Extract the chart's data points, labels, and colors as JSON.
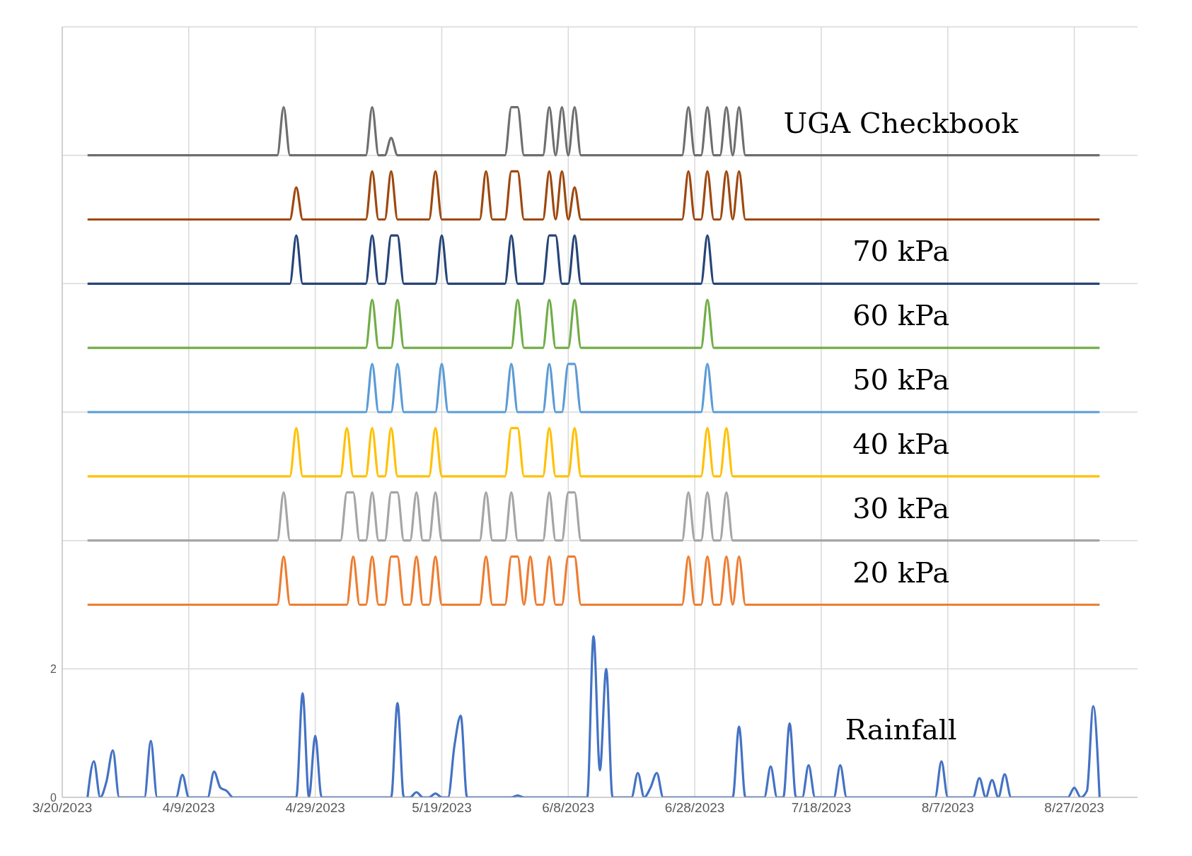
{
  "chart_data": {
    "type": "line",
    "xlim": [
      "2023-03-20",
      "2023-09-06"
    ],
    "xticks": [
      {
        "value": "2023-03-20",
        "label": "3/20/2023"
      },
      {
        "value": "2023-04-09",
        "label": "4/9/2023"
      },
      {
        "value": "2023-04-29",
        "label": "4/29/2023"
      },
      {
        "value": "2023-05-19",
        "label": "5/19/2023"
      },
      {
        "value": "2023-06-08",
        "label": "6/8/2023"
      },
      {
        "value": "2023-06-28",
        "label": "6/28/2023"
      },
      {
        "value": "2023-07-18",
        "label": "7/18/2023"
      },
      {
        "value": "2023-08-07",
        "label": "8/7/2023"
      },
      {
        "value": "2023-08-27",
        "label": "8/27/2023"
      }
    ],
    "ylim": [
      0,
      12
    ],
    "yticks": [
      0,
      2,
      {
        "value": 4,
        "label": null
      },
      {
        "value": 6,
        "label": null
      },
      {
        "value": 8,
        "label": null
      },
      {
        "value": 10,
        "label": null
      },
      {
        "value": 12,
        "label": null
      }
    ],
    "grid": true,
    "marker": "none",
    "line_style": "solid",
    "series": [
      {
        "name": "UGA Checkbook",
        "color": "#6e6e6e",
        "x": [
          "2023-03-24",
          "2023-04-23",
          "2023-04-24",
          "2023-04-25",
          "2023-05-07",
          "2023-05-08",
          "2023-05-09",
          "2023-05-10",
          "2023-05-11",
          "2023-05-12",
          "2023-05-29",
          "2023-05-30",
          "2023-05-31",
          "2023-06-01",
          "2023-06-04",
          "2023-06-05",
          "2023-06-06",
          "2023-06-07",
          "2023-06-08",
          "2023-06-09",
          "2023-06-10",
          "2023-06-26",
          "2023-06-27",
          "2023-06-28",
          "2023-06-29",
          "2023-06-30",
          "2023-07-01",
          "2023-07-02",
          "2023-07-03",
          "2023-07-04",
          "2023-07-05",
          "2023-07-06",
          "2023-08-31"
        ],
        "values": [
          10,
          10,
          10.75,
          10,
          10,
          10.75,
          10,
          10,
          10.27,
          10,
          10,
          10.75,
          10.75,
          10,
          10,
          10.75,
          10,
          10.75,
          10,
          10.75,
          10,
          10,
          10.75,
          10,
          10,
          10.75,
          10,
          10,
          10.75,
          10,
          10.75,
          10,
          10
        ]
      },
      {
        "color": "#9e480e",
        "x": [
          "2023-03-24",
          "2023-04-25",
          "2023-04-26",
          "2023-04-27",
          "2023-05-07",
          "2023-05-08",
          "2023-05-09",
          "2023-05-10",
          "2023-05-11",
          "2023-05-12",
          "2023-05-17",
          "2023-05-18",
          "2023-05-19",
          "2023-05-25",
          "2023-05-26",
          "2023-05-27",
          "2023-05-29",
          "2023-05-30",
          "2023-05-31",
          "2023-06-01",
          "2023-06-04",
          "2023-06-05",
          "2023-06-06",
          "2023-06-07",
          "2023-06-08",
          "2023-06-09",
          "2023-06-10",
          "2023-06-26",
          "2023-06-27",
          "2023-06-28",
          "2023-06-29",
          "2023-06-30",
          "2023-07-01",
          "2023-07-02",
          "2023-07-03",
          "2023-07-04",
          "2023-07-05",
          "2023-07-06",
          "2023-08-31"
        ],
        "values": [
          9,
          9,
          9.5,
          9,
          9,
          9.75,
          9,
          9,
          9.75,
          9,
          9,
          9.75,
          9,
          9,
          9.75,
          9,
          9,
          9.75,
          9.75,
          9,
          9,
          9.75,
          9,
          9.75,
          9,
          9.5,
          9,
          9,
          9.75,
          9,
          9,
          9.75,
          9,
          9,
          9.75,
          9,
          9.75,
          9,
          9
        ]
      },
      {
        "name": "70 kPa",
        "color": "#264478",
        "x": [
          "2023-03-24",
          "2023-04-25",
          "2023-04-26",
          "2023-04-27",
          "2023-05-07",
          "2023-05-08",
          "2023-05-09",
          "2023-05-10",
          "2023-05-11",
          "2023-05-12",
          "2023-05-13",
          "2023-05-18",
          "2023-05-19",
          "2023-05-20",
          "2023-05-29",
          "2023-05-30",
          "2023-05-31",
          "2023-06-04",
          "2023-06-05",
          "2023-06-06",
          "2023-06-07",
          "2023-06-08",
          "2023-06-09",
          "2023-06-10",
          "2023-06-29",
          "2023-06-30",
          "2023-07-01",
          "2023-08-31"
        ],
        "values": [
          8,
          8,
          8.75,
          8,
          8,
          8.75,
          8,
          8,
          8.75,
          8.75,
          8,
          8,
          8.75,
          8,
          8,
          8.75,
          8,
          8,
          8.75,
          8.75,
          8,
          8,
          8.75,
          8,
          8,
          8.75,
          8,
          8
        ]
      },
      {
        "name": "60 kPa",
        "color": "#70ad47",
        "x": [
          "2023-03-24",
          "2023-05-07",
          "2023-05-08",
          "2023-05-09",
          "2023-05-11",
          "2023-05-12",
          "2023-05-13",
          "2023-05-30",
          "2023-05-31",
          "2023-06-01",
          "2023-06-04",
          "2023-06-05",
          "2023-06-06",
          "2023-06-08",
          "2023-06-09",
          "2023-06-10",
          "2023-06-29",
          "2023-06-30",
          "2023-07-01",
          "2023-08-31"
        ],
        "values": [
          7,
          7,
          7.75,
          7,
          7,
          7.75,
          7,
          7,
          7.75,
          7,
          7,
          7.75,
          7,
          7,
          7.75,
          7,
          7,
          7.75,
          7,
          7
        ]
      },
      {
        "name": "50 kPa",
        "color": "#5b9bd5",
        "x": [
          "2023-03-24",
          "2023-05-07",
          "2023-05-08",
          "2023-05-09",
          "2023-05-11",
          "2023-05-12",
          "2023-05-13",
          "2023-05-18",
          "2023-05-19",
          "2023-05-20",
          "2023-05-29",
          "2023-05-30",
          "2023-05-31",
          "2023-06-04",
          "2023-06-05",
          "2023-06-06",
          "2023-06-07",
          "2023-06-08",
          "2023-06-09",
          "2023-06-10",
          "2023-06-29",
          "2023-06-30",
          "2023-07-01",
          "2023-08-31"
        ],
        "values": [
          6,
          6,
          6.75,
          6,
          6,
          6.75,
          6,
          6,
          6.75,
          6,
          6,
          6.75,
          6,
          6,
          6.75,
          6,
          6,
          6.75,
          6.75,
          6,
          6,
          6.75,
          6,
          6
        ]
      },
      {
        "name": "40 kPa",
        "color": "#ffc000",
        "x": [
          "2023-03-24",
          "2023-04-25",
          "2023-04-26",
          "2023-04-27",
          "2023-05-03",
          "2023-05-04",
          "2023-05-05",
          "2023-05-07",
          "2023-05-08",
          "2023-05-09",
          "2023-05-10",
          "2023-05-11",
          "2023-05-12",
          "2023-05-17",
          "2023-05-18",
          "2023-05-19",
          "2023-05-29",
          "2023-05-30",
          "2023-05-31",
          "2023-06-01",
          "2023-06-04",
          "2023-06-05",
          "2023-06-06",
          "2023-06-08",
          "2023-06-09",
          "2023-06-10",
          "2023-06-29",
          "2023-06-30",
          "2023-07-01",
          "2023-07-02",
          "2023-07-03",
          "2023-07-04",
          "2023-08-31"
        ],
        "values": [
          5,
          5,
          5.75,
          5,
          5,
          5.75,
          5,
          5,
          5.75,
          5,
          5,
          5.75,
          5,
          5,
          5.75,
          5,
          5,
          5.75,
          5.75,
          5,
          5,
          5.75,
          5,
          5,
          5.75,
          5,
          5,
          5.75,
          5,
          5,
          5.75,
          5,
          5
        ]
      },
      {
        "name": "30 kPa",
        "color": "#a5a5a5",
        "x": [
          "2023-03-24",
          "2023-04-23",
          "2023-04-24",
          "2023-04-25",
          "2023-05-03",
          "2023-05-04",
          "2023-05-05",
          "2023-05-06",
          "2023-05-07",
          "2023-05-08",
          "2023-05-09",
          "2023-05-10",
          "2023-05-11",
          "2023-05-12",
          "2023-05-13",
          "2023-05-14",
          "2023-05-15",
          "2023-05-16",
          "2023-05-17",
          "2023-05-18",
          "2023-05-19",
          "2023-05-25",
          "2023-05-26",
          "2023-05-27",
          "2023-05-29",
          "2023-05-30",
          "2023-05-31",
          "2023-06-04",
          "2023-06-05",
          "2023-06-06",
          "2023-06-07",
          "2023-06-08",
          "2023-06-09",
          "2023-06-10",
          "2023-06-26",
          "2023-06-27",
          "2023-06-28",
          "2023-06-29",
          "2023-06-30",
          "2023-07-01",
          "2023-07-02",
          "2023-07-03",
          "2023-07-04",
          "2023-08-31"
        ],
        "values": [
          4,
          4,
          4.75,
          4,
          4,
          4.75,
          4.75,
          4,
          4,
          4.75,
          4,
          4,
          4.75,
          4.75,
          4,
          4,
          4.75,
          4,
          4,
          4.75,
          4,
          4,
          4.75,
          4,
          4,
          4.75,
          4,
          4,
          4.75,
          4,
          4,
          4.75,
          4.75,
          4,
          4,
          4.75,
          4,
          4,
          4.75,
          4,
          4,
          4.75,
          4,
          4
        ]
      },
      {
        "name": "20 kPa",
        "color": "#ed7d31",
        "x": [
          "2023-03-24",
          "2023-04-23",
          "2023-04-24",
          "2023-04-25",
          "2023-05-04",
          "2023-05-05",
          "2023-05-06",
          "2023-05-07",
          "2023-05-08",
          "2023-05-09",
          "2023-05-10",
          "2023-05-11",
          "2023-05-12",
          "2023-05-13",
          "2023-05-14",
          "2023-05-15",
          "2023-05-16",
          "2023-05-17",
          "2023-05-18",
          "2023-05-19",
          "2023-05-25",
          "2023-05-26",
          "2023-05-27",
          "2023-05-29",
          "2023-05-30",
          "2023-05-31",
          "2023-06-01",
          "2023-06-02",
          "2023-06-03",
          "2023-06-04",
          "2023-06-05",
          "2023-06-06",
          "2023-06-07",
          "2023-06-08",
          "2023-06-09",
          "2023-06-10",
          "2023-06-26",
          "2023-06-27",
          "2023-06-28",
          "2023-06-29",
          "2023-06-30",
          "2023-07-01",
          "2023-07-02",
          "2023-07-03",
          "2023-07-04",
          "2023-07-05",
          "2023-07-06",
          "2023-08-31"
        ],
        "values": [
          3,
          3,
          3.75,
          3,
          3,
          3.75,
          3,
          3,
          3.75,
          3,
          3,
          3.75,
          3.75,
          3,
          3,
          3.75,
          3,
          3,
          3.75,
          3,
          3,
          3.75,
          3,
          3,
          3.75,
          3.75,
          3,
          3.75,
          3,
          3,
          3.75,
          3,
          3,
          3.75,
          3.75,
          3,
          3,
          3.75,
          3,
          3,
          3.75,
          3,
          3,
          3.75,
          3,
          3.75,
          3,
          3
        ]
      },
      {
        "name": "Rainfall",
        "color": "#4472c4",
        "x": [
          "2023-03-24",
          "2023-03-25",
          "2023-03-26",
          "2023-03-27",
          "2023-03-28",
          "2023-03-29",
          "2023-04-02",
          "2023-04-03",
          "2023-04-04",
          "2023-04-07",
          "2023-04-08",
          "2023-04-09",
          "2023-04-12",
          "2023-04-13",
          "2023-04-14",
          "2023-04-15",
          "2023-04-16",
          "2023-04-26",
          "2023-04-27",
          "2023-04-28",
          "2023-04-29",
          "2023-04-30",
          "2023-05-11",
          "2023-05-12",
          "2023-05-13",
          "2023-05-14",
          "2023-05-15",
          "2023-05-16",
          "2023-05-17",
          "2023-05-18",
          "2023-05-19",
          "2023-05-20",
          "2023-05-21",
          "2023-05-22",
          "2023-05-23",
          "2023-05-30",
          "2023-05-31",
          "2023-06-01",
          "2023-06-11",
          "2023-06-12",
          "2023-06-13",
          "2023-06-14",
          "2023-06-15",
          "2023-06-18",
          "2023-06-19",
          "2023-06-20",
          "2023-06-21",
          "2023-06-22",
          "2023-06-23",
          "2023-07-04",
          "2023-07-05",
          "2023-07-06",
          "2023-07-09",
          "2023-07-10",
          "2023-07-11",
          "2023-07-12",
          "2023-07-13",
          "2023-07-14",
          "2023-07-15",
          "2023-07-16",
          "2023-07-17",
          "2023-07-20",
          "2023-07-21",
          "2023-07-22",
          "2023-08-05",
          "2023-08-06",
          "2023-08-07",
          "2023-08-11",
          "2023-08-12",
          "2023-08-13",
          "2023-08-14",
          "2023-08-15",
          "2023-08-16",
          "2023-08-17",
          "2023-08-26",
          "2023-08-27",
          "2023-08-28",
          "2023-08-29",
          "2023-08-30",
          "2023-08-31"
        ],
        "values": [
          0,
          0.56,
          0,
          0.25,
          0.73,
          0,
          0,
          0.88,
          0,
          0,
          0.35,
          0,
          0,
          0.4,
          0.15,
          0.1,
          0,
          0,
          1.62,
          0,
          0.96,
          0,
          0,
          1.47,
          0,
          0,
          0.08,
          0,
          0,
          0.06,
          0,
          0,
          0.8,
          1.27,
          0,
          0,
          0.03,
          0,
          0,
          2.51,
          0.42,
          2.0,
          0,
          0,
          0.38,
          0,
          0.15,
          0.38,
          0,
          0,
          1.1,
          0,
          0,
          0.48,
          0,
          0,
          1.15,
          0,
          0,
          0.5,
          0,
          0,
          0.5,
          0,
          0,
          0.56,
          0,
          0,
          0.3,
          0,
          0.27,
          0,
          0.36,
          0,
          0,
          0.15,
          0,
          0.1,
          1.42,
          0
        ]
      }
    ]
  }
}
